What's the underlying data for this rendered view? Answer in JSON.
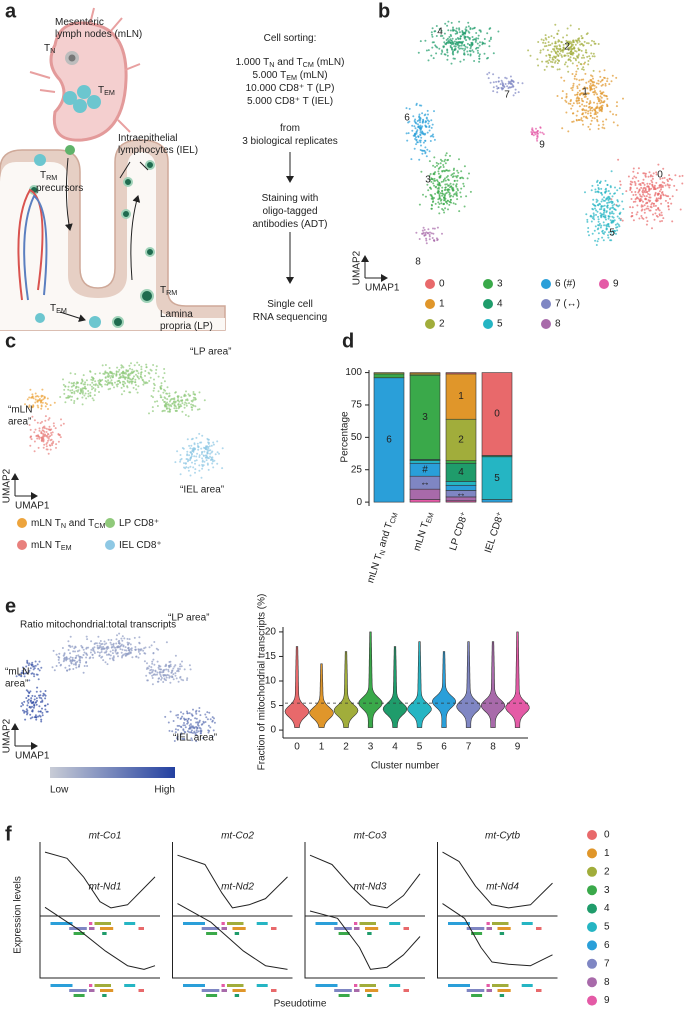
{
  "a": {
    "letter": "a",
    "texts": [
      [
        "Mesenteric"
      ],
      [
        "lymph nodes (mLN)"
      ],
      [
        "T",
        "N"
      ],
      [
        "T",
        "EM"
      ],
      [
        "Intraepithelial"
      ],
      [
        "lymphocytes (IEL)"
      ],
      [
        "T",
        "RM"
      ],
      [
        "precursors"
      ],
      [
        "T",
        "RM"
      ],
      [
        "T",
        "EM"
      ],
      [
        "Lamina"
      ],
      [
        "propria (LP)"
      ],
      [
        "Cell sorting:"
      ],
      [
        "1.000 T",
        "N",
        " and T",
        "CM",
        " (mLN)"
      ],
      [
        "5.000 T",
        "EM",
        " (mLN)"
      ],
      [
        "10.000 CD8⁺ T (LP)"
      ],
      [
        "5.000 CD8⁺ T (IEL)"
      ],
      [
        "from"
      ],
      [
        "3 biological replicates"
      ],
      [
        "Staining with"
      ],
      [
        "oligo-tagged"
      ],
      [
        "antibodies (ADT)"
      ],
      [
        "Single cell"
      ],
      [
        "RNA sequencing"
      ]
    ]
  },
  "b": {
    "letter": "b",
    "clusters": [
      "0",
      "1",
      "2",
      "3",
      "4",
      "5",
      "6",
      "7",
      "8",
      "9"
    ],
    "x_axis": "UMAP1",
    "y_axis": "UMAP2",
    "legend": [
      {
        "name": "0",
        "color": "#e8696b"
      },
      {
        "name": "1",
        "color": "#e0962a"
      },
      {
        "name": "2",
        "color": "#a1ad3b"
      },
      {
        "name": "3",
        "color": "#3aa94a"
      },
      {
        "name": "4",
        "color": "#1f9c6b"
      },
      {
        "name": "5",
        "color": "#25b5c3"
      },
      {
        "name": "6 (#)",
        "color": "#2a9fd9"
      },
      {
        "name": "7 (↔)",
        "color": "#7f86c3"
      },
      {
        "name": "8",
        "color": "#a86aaa"
      },
      {
        "name": "9",
        "color": "#e45aa6"
      }
    ]
  },
  "c": {
    "letter": "c",
    "areas": [
      [
        "“LP area”"
      ],
      [
        "“mLN",
        "area”"
      ],
      [
        "“IEL area”"
      ]
    ],
    "x_axis": "UMAP1",
    "y_axis": "UMAP2",
    "legend": [
      {
        "parts": [
          "mLN T",
          "N",
          " and T",
          "CM"
        ],
        "color": "#eda43c"
      },
      {
        "parts": [
          "mLN T",
          "EM"
        ],
        "color": "#e8807d"
      },
      {
        "parts": [
          "LP CD8⁺"
        ],
        "color": "#8fc97a"
      },
      {
        "parts": [
          "IEL CD8⁺"
        ],
        "color": "#8ec8e4"
      }
    ]
  },
  "d": {
    "letter": "d",
    "chart_data": {
      "type": "stacked_bar",
      "y_label": "Percentage",
      "ylim": [
        -3,
        102
      ],
      "yticks": [
        0,
        25,
        50,
        75,
        100
      ],
      "categories": [
        [
          "mLN T",
          "N",
          " and T",
          "CM"
        ],
        [
          "mLN T",
          "EM"
        ],
        [
          "LP CD8⁺"
        ],
        [
          "IEL CD8⁺"
        ]
      ],
      "series": [
        {
          "color": "#e45aa6",
          "values": [
            0,
            2,
            1,
            0
          ],
          "labels": [
            null,
            null,
            null,
            null
          ]
        },
        {
          "color": "#a86aaa",
          "values": [
            0,
            8,
            3,
            0
          ],
          "labels": [
            null,
            null,
            null,
            null
          ]
        },
        {
          "color": "#7f86c3",
          "values": [
            0,
            10,
            5,
            0
          ],
          "labels": [
            null,
            "↔",
            "↔",
            null
          ]
        },
        {
          "color": "#2a9fd9",
          "values": [
            96,
            10,
            4,
            2
          ],
          "labels": [
            "6",
            "#",
            null,
            null
          ]
        },
        {
          "color": "#25b5c3",
          "values": [
            0,
            2,
            3,
            33
          ],
          "labels": [
            null,
            null,
            null,
            "5"
          ]
        },
        {
          "color": "#1f9c6b",
          "values": [
            0,
            1,
            14,
            1
          ],
          "labels": [
            null,
            null,
            "4",
            null
          ]
        },
        {
          "color": "#3aa94a",
          "values": [
            3,
            65,
            2,
            0
          ],
          "labels": [
            null,
            "3",
            null,
            null
          ]
        },
        {
          "color": "#a1ad3b",
          "values": [
            1,
            1,
            32,
            0
          ],
          "labels": [
            null,
            null,
            "2",
            null
          ]
        },
        {
          "color": "#e0962a",
          "values": [
            0,
            1,
            35,
            0
          ],
          "labels": [
            null,
            null,
            "1",
            null
          ]
        },
        {
          "color": "#e8696b",
          "values": [
            0,
            0,
            1,
            64
          ],
          "labels": [
            null,
            null,
            null,
            "0"
          ]
        }
      ]
    }
  },
  "e": {
    "letter": "e",
    "title": "Ratio mitochondrial:total transcripts",
    "areas": [
      [
        "“LP area”"
      ],
      [
        "“mLN",
        "area”"
      ],
      [
        "“IEL area”"
      ]
    ],
    "x_axis": "UMAP1",
    "y_axis": "UMAP2",
    "scale": [
      "Low",
      "High"
    ],
    "gradient": [
      "#c8ccd6",
      "#2340a0"
    ],
    "chart_data": {
      "type": "violin",
      "y_label": "Fraction of mitochondrial transcripts (%)",
      "x_label": "Cluster number",
      "categories": [
        "0",
        "1",
        "2",
        "3",
        "4",
        "5",
        "6",
        "7",
        "8",
        "9"
      ],
      "colors": [
        "#e8696b",
        "#e0962a",
        "#a1ad3b",
        "#3aa94a",
        "#1f9c6b",
        "#25b5c3",
        "#2a9fd9",
        "#7f86c3",
        "#a86aaa",
        "#e45aa6"
      ],
      "minima": [
        0.5,
        0.5,
        0.5,
        0.5,
        0.5,
        0.5,
        0.5,
        0.5,
        0.5,
        0.5
      ],
      "medians": [
        3.8,
        3.5,
        4,
        5.5,
        4.3,
        4.3,
        5.8,
        4.8,
        5,
        4.6
      ],
      "maxima": [
        17,
        13.5,
        16,
        20,
        17,
        18,
        16,
        18,
        18,
        20
      ],
      "reference_line": 5.5,
      "ylim": [
        -1,
        21
      ],
      "yticks": [
        0,
        5,
        10,
        15,
        20
      ]
    }
  },
  "f": {
    "letter": "f",
    "genes": [
      "mt-Co1",
      "mt-Co2",
      "mt-Co3",
      "mt-Cytb",
      "mt-Nd1",
      "mt-Nd2",
      "mt-Nd3",
      "mt-Nd4"
    ],
    "y_label": "Expression levels",
    "x_label": "Pseudotime",
    "legend": [
      {
        "name": "0",
        "color": "#e8696b"
      },
      {
        "name": "1",
        "color": "#e0962a"
      },
      {
        "name": "2",
        "color": "#a1ad3b"
      },
      {
        "name": "3",
        "color": "#3aa94a"
      },
      {
        "name": "4",
        "color": "#1f9c6b"
      },
      {
        "name": "5",
        "color": "#25b5c3"
      },
      {
        "name": "6",
        "color": "#2a9fd9"
      },
      {
        "name": "7",
        "color": "#7f86c3"
      },
      {
        "name": "8",
        "color": "#a86aaa"
      },
      {
        "name": "9",
        "color": "#e45aa6"
      }
    ]
  }
}
